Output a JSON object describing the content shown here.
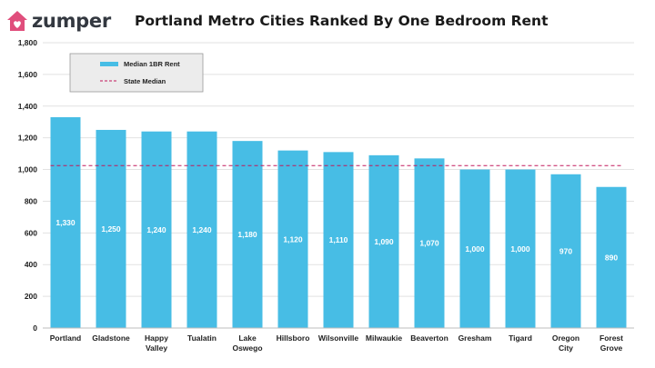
{
  "brand": {
    "name": "zumper",
    "logo_icon": "house-heart-icon",
    "logo_color": "#e04e7c"
  },
  "colors": {
    "bar": "#47bde5",
    "median_line": "#c2185b",
    "grid": "#e2e2e2",
    "legend_bg": "#ececec"
  },
  "chart_data": {
    "type": "bar",
    "title": "Portland Metro Cities Ranked By One Bedroom Rent",
    "xlabel": "",
    "ylabel": "",
    "categories": [
      "Portland",
      "Gladstone",
      "Happy Valley",
      "Tualatin",
      "Lake Oswego",
      "Hillsboro",
      "Wilsonville",
      "Milwaukie",
      "Beaverton",
      "Gresham",
      "Tigard",
      "Oregon City",
      "Forest Grove"
    ],
    "series": [
      {
        "name": "Median 1BR Rent",
        "values": [
          1330,
          1250,
          1240,
          1240,
          1180,
          1120,
          1110,
          1090,
          1070,
          1000,
          1000,
          970,
          890
        ]
      }
    ],
    "data_labels": [
      "1,330",
      "1,250",
      "1,240",
      "1,240",
      "1,180",
      "1,120",
      "1,110",
      "1,090",
      "1,070",
      "1,000",
      "1,000",
      "970",
      "890"
    ],
    "reference_line": {
      "name": "State Median",
      "value": 1025,
      "style": "dashed"
    },
    "ylim": [
      0,
      1800
    ],
    "yticks": [
      0,
      200,
      400,
      600,
      800,
      1000,
      1200,
      1400,
      1600,
      1800
    ],
    "ytick_labels": [
      "0",
      "200",
      "400",
      "600",
      "800",
      "1,000",
      "1,200",
      "1,400",
      "1,600",
      "1,800"
    ],
    "grid": true,
    "legend_position": "top-left"
  }
}
